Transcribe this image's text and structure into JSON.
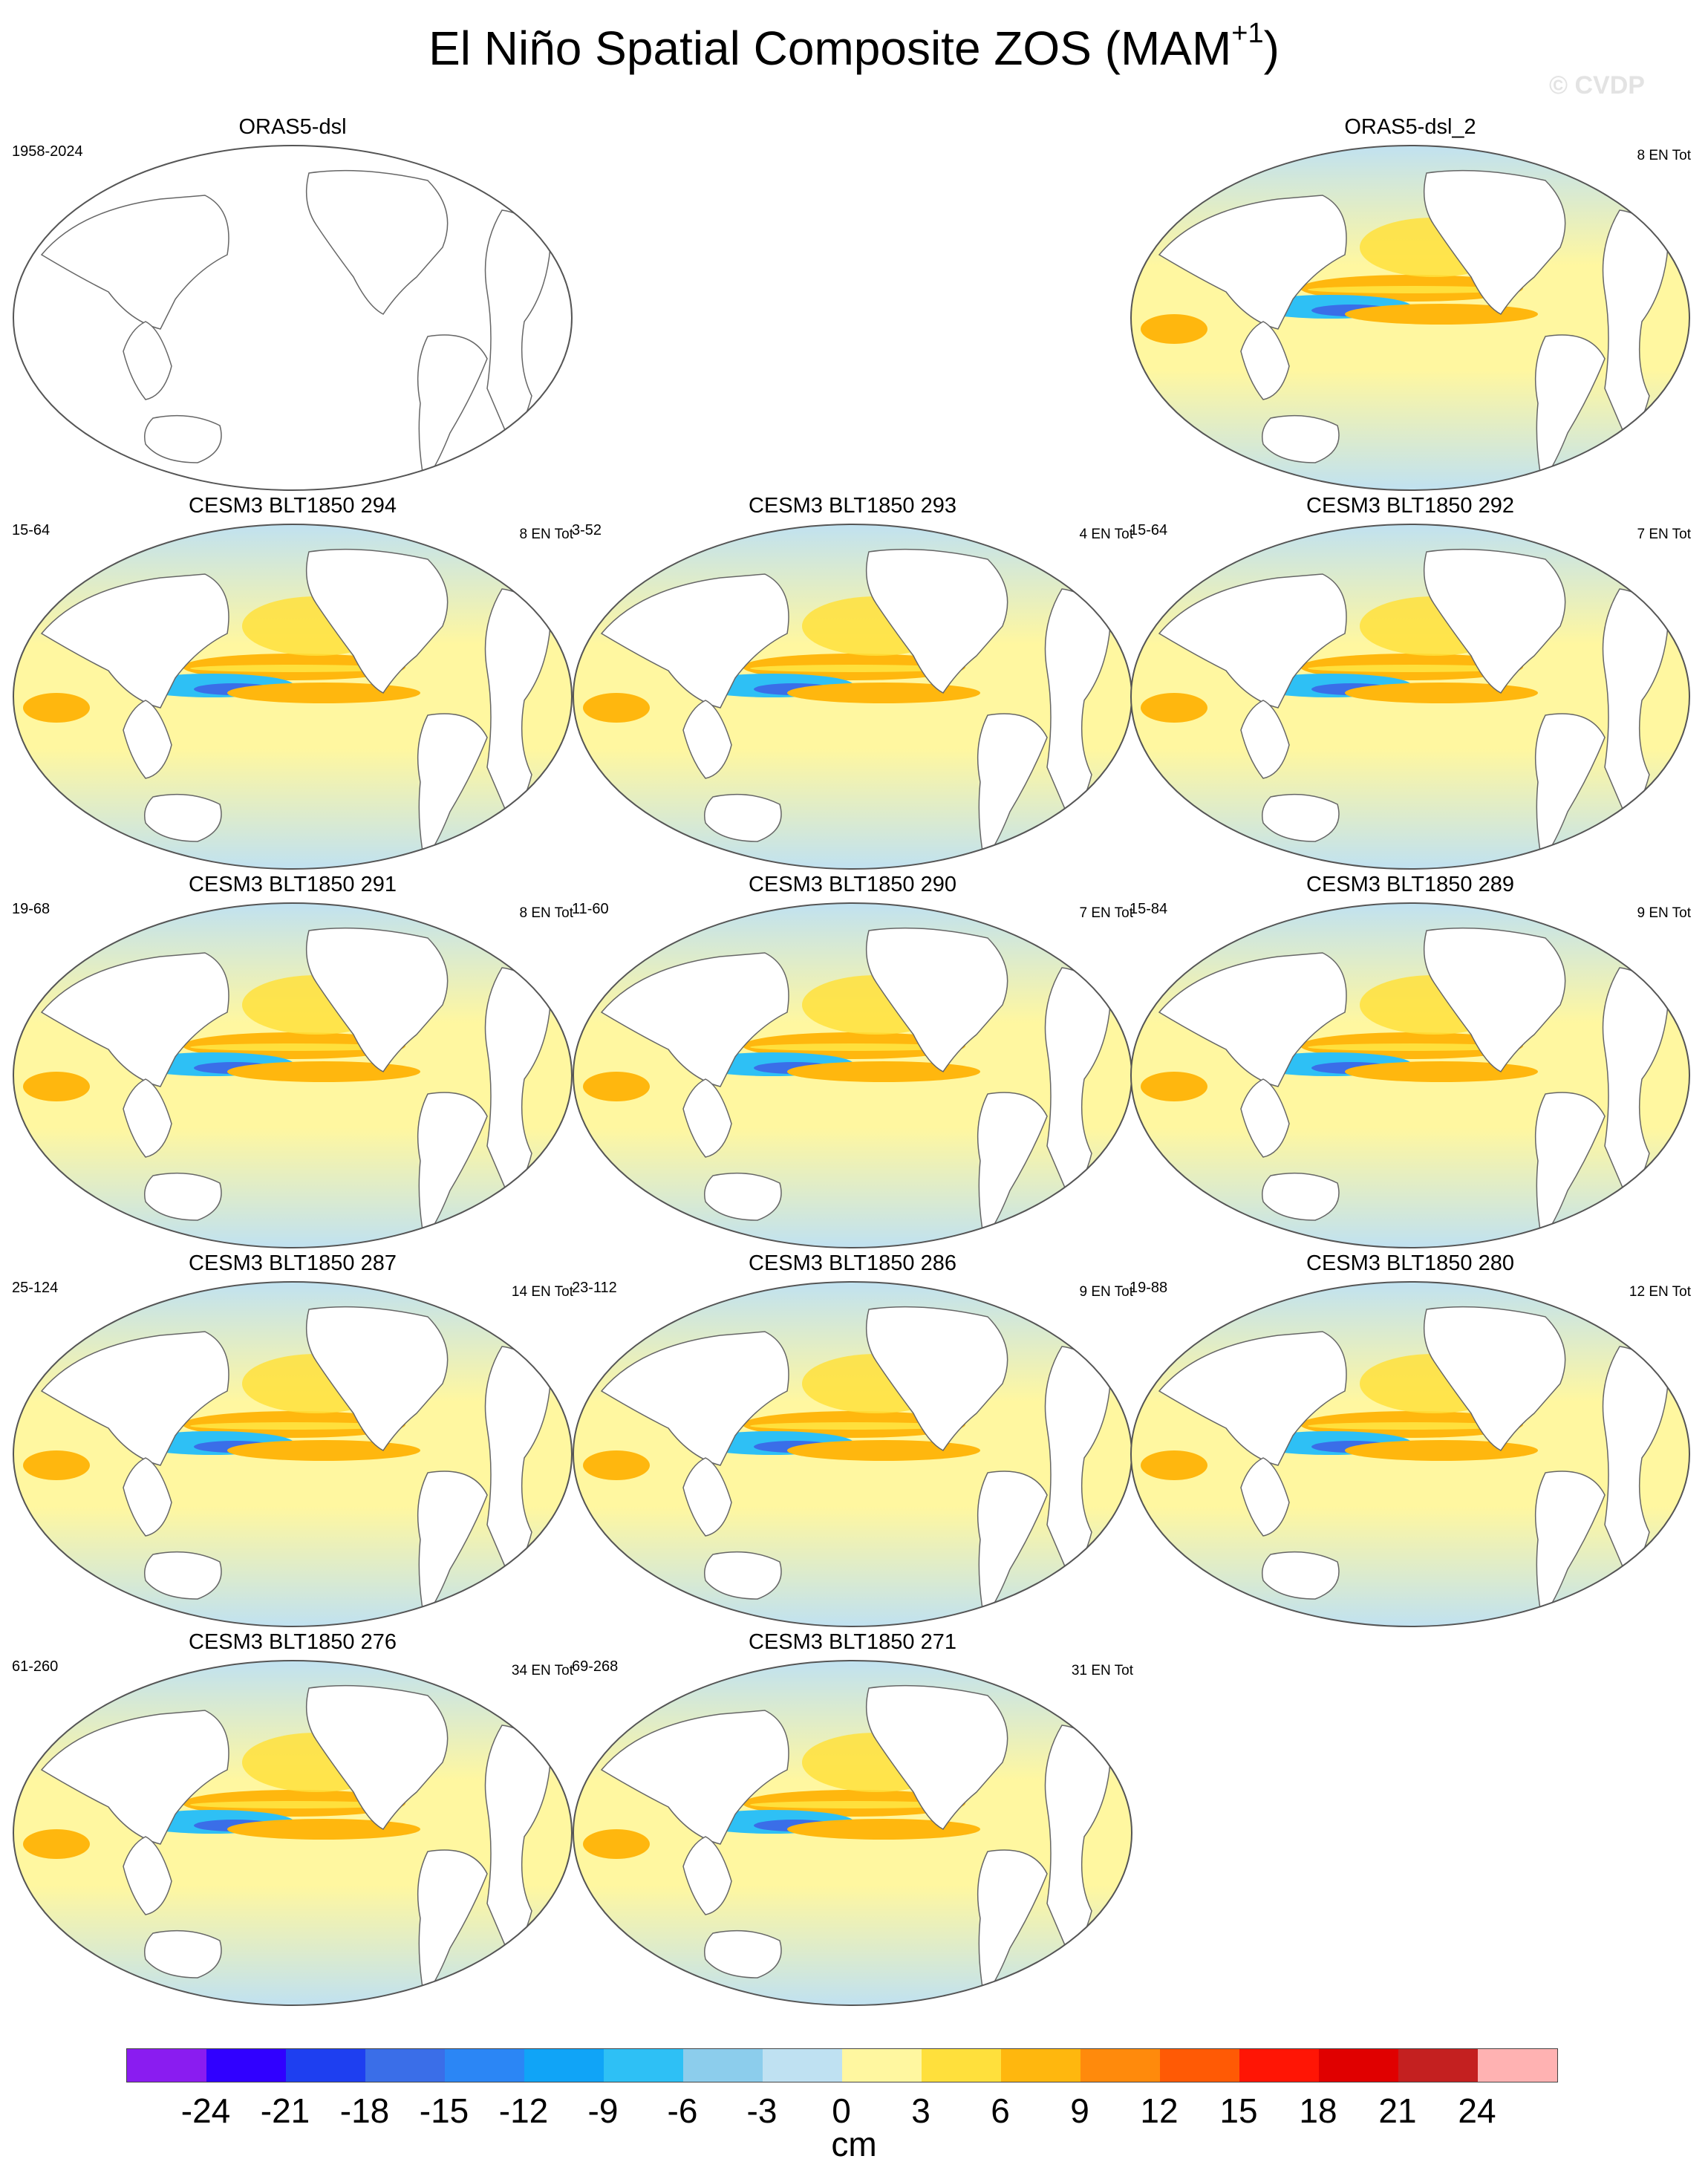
{
  "title_main": "El Niño Spatial Composite ZOS (MAM",
  "title_sup": "+1",
  "title_close": ")",
  "watermark": "© CVDP",
  "panels": [
    {
      "title": "ORAS5-dsl",
      "years": "1958-2024",
      "count": "",
      "empty": true
    },
    {
      "title": "ORAS5-dsl_2",
      "years": "",
      "count": "8 EN Tot",
      "empty": false
    },
    {
      "title": "CESM3 BLT1850 294",
      "years": "15-64",
      "count": "8 EN Tot",
      "empty": false
    },
    {
      "title": "CESM3 BLT1850 293",
      "years": "3-52",
      "count": "4 EN Tot",
      "empty": false
    },
    {
      "title": "CESM3 BLT1850 292",
      "years": "15-64",
      "count": "7 EN Tot",
      "empty": false
    },
    {
      "title": "CESM3 BLT1850 291",
      "years": "19-68",
      "count": "8 EN Tot",
      "empty": false
    },
    {
      "title": "CESM3 BLT1850 290",
      "years": "11-60",
      "count": "7 EN Tot",
      "empty": false
    },
    {
      "title": "CESM3 BLT1850 289",
      "years": "15-84",
      "count": "9 EN Tot",
      "empty": false
    },
    {
      "title": "CESM3 BLT1850 287",
      "years": "25-124",
      "count": "14 EN Tot",
      "empty": false
    },
    {
      "title": "CESM3 BLT1850 286",
      "years": "23-112",
      "count": "9 EN Tot",
      "empty": false
    },
    {
      "title": "CESM3 BLT1850 280",
      "years": "19-88",
      "count": "12 EN Tot",
      "empty": false
    },
    {
      "title": "CESM3 BLT1850 276",
      "years": "61-260",
      "count": "34 EN Tot",
      "empty": false
    },
    {
      "title": "CESM3 BLT1850 271",
      "years": "69-268",
      "count": "31 EN Tot",
      "empty": false
    }
  ],
  "colorbar": {
    "colors": [
      "#8a1cf0",
      "#3000ff",
      "#1e3ff0",
      "#3a6ee8",
      "#2b86f5",
      "#10a4f7",
      "#2ec0f5",
      "#8ccdec",
      "#bfe1f2",
      "#fff7a0",
      "#ffe03c",
      "#ffb70e",
      "#ff8a0c",
      "#ff5a05",
      "#ff1505",
      "#e00000",
      "#c42020",
      "#ffb2b2"
    ],
    "ticks": [
      "-24",
      "-21",
      "-18",
      "-15",
      "-12",
      "-9",
      "-6",
      "-3",
      "0",
      "3",
      "6",
      "9",
      "12",
      "15",
      "18",
      "21",
      "24"
    ],
    "units": "cm"
  }
}
